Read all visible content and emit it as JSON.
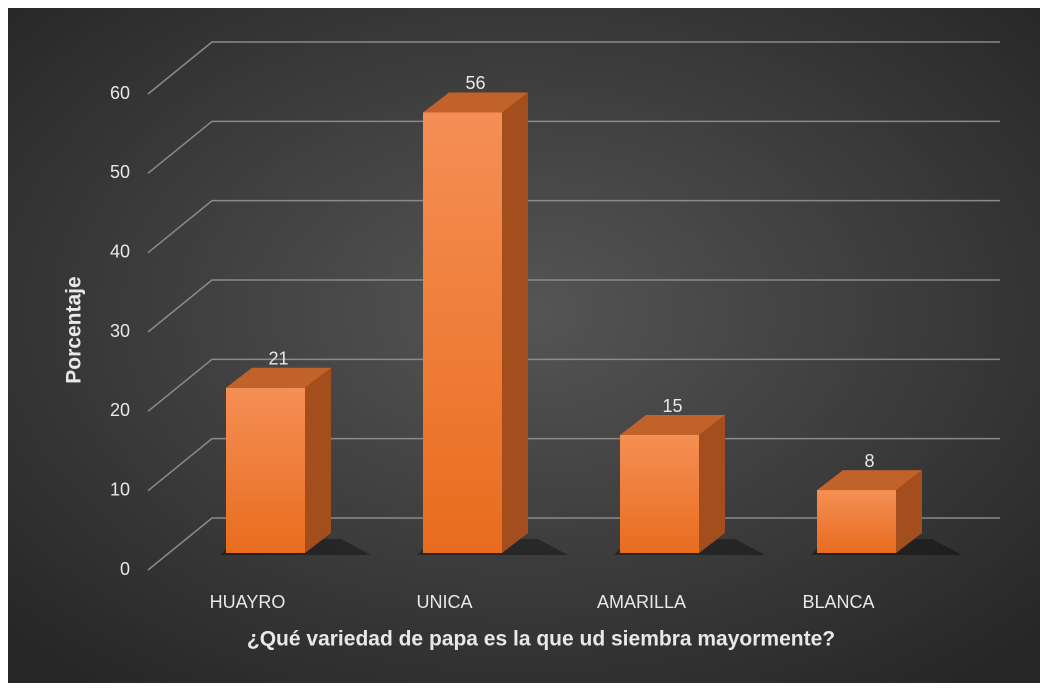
{
  "chart_data": {
    "type": "bar3d",
    "x_label": "¿Qué variedad de papa es la que ud siembra mayormente?",
    "y_label": "Porcentaje",
    "categories": [
      "HUAYRO",
      "UNICA",
      "AMARILLA",
      "BLANCA"
    ],
    "values": [
      21,
      56,
      15,
      8
    ],
    "color": "#f07f35",
    "ylim": [
      0,
      60
    ],
    "yticks": [
      0,
      10,
      20,
      30,
      40,
      50,
      60
    ],
    "grid": true
  }
}
